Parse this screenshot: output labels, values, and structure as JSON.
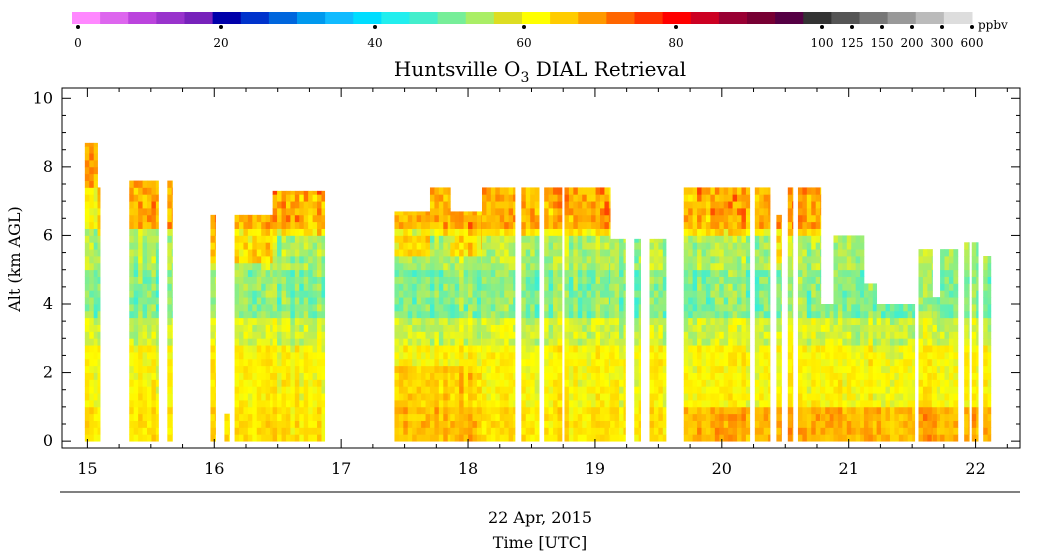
{
  "chart_data": {
    "type": "heatmap",
    "title_prefix": "Huntsville O",
    "title_subscript": "3",
    "title_suffix": " DIAL Retrieval",
    "ylabel": "Alt (km AGL)",
    "xlabel_date": "22 Apr, 2015",
    "xlabel": "Time [UTC]",
    "x_ticks": [
      "15",
      "16",
      "17",
      "18",
      "19",
      "20",
      "21",
      "22"
    ],
    "y_ticks": [
      "0",
      "2",
      "4",
      "6",
      "8",
      "10"
    ],
    "xlim": [
      14.8,
      22.35
    ],
    "ylim": [
      -0.2,
      10.3
    ],
    "colorbar": {
      "unit": "ppbv",
      "tick_labels": [
        "0",
        "20",
        "40",
        "60",
        "80",
        "100",
        "125",
        "150",
        "200",
        "300",
        "600"
      ],
      "colors": [
        "#ff88ff",
        "#dd66ee",
        "#bb44dd",
        "#9933cc",
        "#7722bb",
        "#0000aa",
        "#0033cc",
        "#0066dd",
        "#0099ee",
        "#11bbff",
        "#00ddff",
        "#22eeee",
        "#44eecc",
        "#77ee99",
        "#aaee66",
        "#dddd22",
        "#ffff00",
        "#ffcc00",
        "#ff9900",
        "#ff6600",
        "#ff3300",
        "#ff0000",
        "#cc0022",
        "#990033",
        "#770033",
        "#550044",
        "#333333",
        "#555555",
        "#777777",
        "#999999",
        "#bbbbbb",
        "#dddddd"
      ]
    },
    "profile_segments": [
      {
        "start": 14.98,
        "end": 15.08,
        "top": 8.7
      },
      {
        "start": 15.08,
        "end": 15.1,
        "top": 7.4
      },
      {
        "start": 15.33,
        "end": 15.56,
        "top": 7.6
      },
      {
        "start": 15.63,
        "end": 15.67,
        "top": 7.6
      },
      {
        "start": 15.97,
        "end": 16.01,
        "top": 6.6
      },
      {
        "start": 16.08,
        "end": 16.12,
        "top": 0.8
      },
      {
        "start": 16.16,
        "end": 16.46,
        "top": 6.6
      },
      {
        "start": 16.46,
        "end": 16.87,
        "top": 7.3
      },
      {
        "start": 17.42,
        "end": 17.7,
        "top": 6.7
      },
      {
        "start": 17.7,
        "end": 17.86,
        "top": 7.4
      },
      {
        "start": 17.86,
        "end": 18.11,
        "top": 6.7
      },
      {
        "start": 18.11,
        "end": 18.37,
        "top": 7.4
      },
      {
        "start": 18.42,
        "end": 18.56,
        "top": 7.4
      },
      {
        "start": 18.6,
        "end": 18.74,
        "top": 7.4
      },
      {
        "start": 18.76,
        "end": 19.12,
        "top": 7.4
      },
      {
        "start": 19.12,
        "end": 19.24,
        "top": 5.9
      },
      {
        "start": 19.31,
        "end": 19.36,
        "top": 5.9
      },
      {
        "start": 19.43,
        "end": 19.56,
        "top": 5.9
      },
      {
        "start": 19.7,
        "end": 20.22,
        "top": 7.4
      },
      {
        "start": 20.26,
        "end": 20.38,
        "top": 7.4
      },
      {
        "start": 20.43,
        "end": 20.47,
        "top": 6.6
      },
      {
        "start": 20.52,
        "end": 20.56,
        "top": 7.4
      },
      {
        "start": 20.6,
        "end": 20.78,
        "top": 7.4
      },
      {
        "start": 20.78,
        "end": 20.88,
        "top": 4.0
      },
      {
        "start": 20.88,
        "end": 21.12,
        "top": 6.0
      },
      {
        "start": 21.12,
        "end": 21.22,
        "top": 4.6
      },
      {
        "start": 21.22,
        "end": 21.52,
        "top": 4.0
      },
      {
        "start": 21.55,
        "end": 21.66,
        "top": 5.6
      },
      {
        "start": 21.66,
        "end": 21.72,
        "top": 4.2
      },
      {
        "start": 21.72,
        "end": 21.86,
        "top": 5.6
      },
      {
        "start": 21.91,
        "end": 21.95,
        "top": 5.8
      },
      {
        "start": 21.97,
        "end": 22.02,
        "top": 5.8
      },
      {
        "start": 22.06,
        "end": 22.12,
        "top": 5.4
      }
    ]
  }
}
